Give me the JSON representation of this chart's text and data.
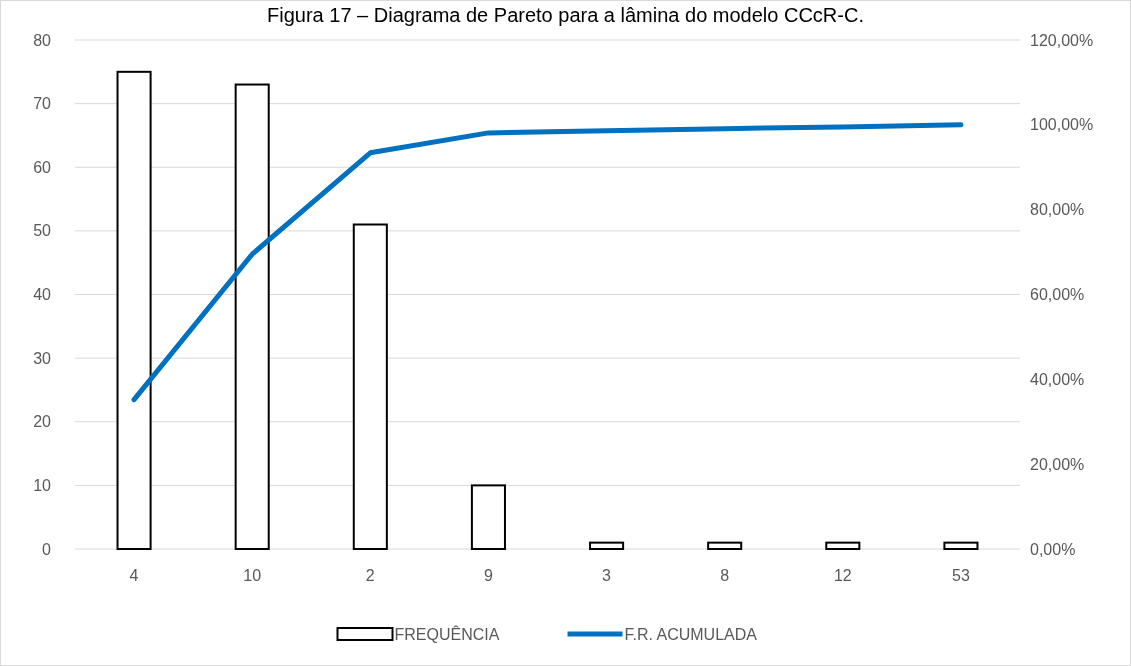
{
  "chart_data": {
    "type": "bar",
    "title": "Figura 17 – Diagrama de Pareto para a lâmina do modelo CCcR-C.",
    "categories": [
      "4",
      "10",
      "2",
      "9",
      "3",
      "8",
      "12",
      "53"
    ],
    "series": [
      {
        "name": "FREQUÊNCIA",
        "color": "#ffffff",
        "values": [
          75,
          73,
          51,
          10,
          1,
          1,
          1,
          1
        ]
      },
      {
        "name": "F.R. ACUMULADA",
        "type": "line",
        "axis": "y2",
        "color": "#0070c0",
        "values": [
          35.2,
          69.5,
          93.4,
          98.1,
          98.6,
          99.1,
          99.5,
          100
        ]
      }
    ],
    "ylim": [
      0,
      80
    ],
    "yticks": [
      0,
      10,
      20,
      30,
      40,
      50,
      60,
      70,
      80
    ],
    "y2lim": [
      0,
      120
    ],
    "y2ticks": [
      {
        "value": 0,
        "label": "0,00%"
      },
      {
        "value": 20,
        "label": "20,00%"
      },
      {
        "value": 40,
        "label": "40,00%"
      },
      {
        "value": 60,
        "label": "60,00%"
      },
      {
        "value": 80,
        "label": "80,00%"
      },
      {
        "value": 100,
        "label": "100,00%"
      },
      {
        "value": 120,
        "label": "120,00%"
      }
    ],
    "grid": "y",
    "legend": "bottom",
    "marker": "none",
    "line_style": "solid"
  }
}
